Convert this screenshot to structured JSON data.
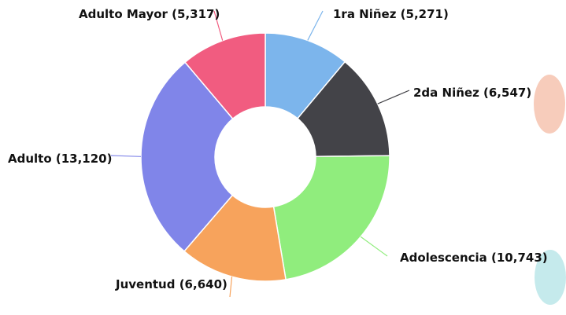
{
  "chart_data": {
    "type": "pie",
    "donut": true,
    "title": "",
    "slices": [
      {
        "name": "1ra Niñez",
        "value": 5271,
        "label": "1ra Niñez (5,271)",
        "color": "#7cb5ec"
      },
      {
        "name": "2da Niñez",
        "value": 6547,
        "label": "2da Niñez (6,547)",
        "color": "#434348"
      },
      {
        "name": "Adolescencia",
        "value": 10743,
        "label": "Adolescencia (10,743)",
        "color": "#90ed7d"
      },
      {
        "name": "Juventud",
        "value": 6640,
        "label": "Juventud (6,640)",
        "color": "#f7a35c"
      },
      {
        "name": "Adulto",
        "value": 13120,
        "label": "Adulto (13,120)",
        "color": "#8085e9"
      },
      {
        "name": "Adulto Mayor",
        "value": 5317,
        "label": "Adulto Mayor (5,317)",
        "color": "#f15c80"
      }
    ]
  }
}
